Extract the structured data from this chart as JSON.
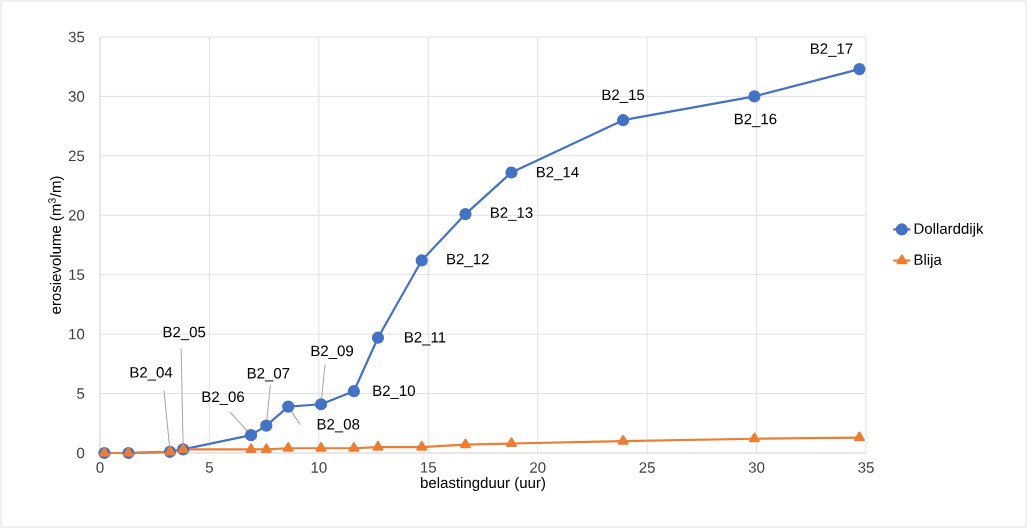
{
  "chart_data": {
    "type": "line",
    "xlabel": "belastingduur (uur)",
    "ylabel": "erosievolume (m$^{3}$/m)",
    "x": [
      0.2,
      1.3,
      3.2,
      3.8,
      6.9,
      7.6,
      8.6,
      10.1,
      11.6,
      12.7,
      14.7,
      16.7,
      18.8,
      23.9,
      29.9,
      34.7
    ],
    "series": [
      {
        "name": "Dollarddijk",
        "color": "#4472c4",
        "marker": "circle",
        "values": [
          0,
          0,
          0.1,
          0.3,
          1.5,
          2.3,
          3.9,
          4.1,
          5.2,
          9.7,
          16.2,
          20.1,
          23.6,
          28,
          30,
          32.3
        ]
      },
      {
        "name": "Blija",
        "color": "#ed7d31",
        "marker": "triangle",
        "values": [
          0,
          0,
          0.1,
          0.3,
          0.3,
          0.3,
          0.4,
          0.4,
          0.4,
          0.5,
          0.5,
          0.7,
          0.8,
          1,
          1.2,
          1.3
        ]
      }
    ],
    "xlim": [
      0,
      35
    ],
    "ylim": [
      0,
      35
    ],
    "xticks": [
      0,
      5,
      10,
      15,
      20,
      25,
      30,
      35
    ],
    "yticks": [
      0,
      5,
      10,
      15,
      20,
      25,
      30,
      35
    ],
    "grid": true,
    "legend": "right",
    "line_style": "solid",
    "annotations": [
      {
        "text": "B2_04",
        "x": 3.2,
        "y": 0.1
      },
      {
        "text": "B2_05",
        "x": 3.8,
        "y": 0.3
      },
      {
        "text": "B2_06",
        "x": 6.9,
        "y": 1.5
      },
      {
        "text": "B2_07",
        "x": 7.6,
        "y": 2.3
      },
      {
        "text": "B2_08",
        "x": 8.6,
        "y": 3.9
      },
      {
        "text": "B2_09",
        "x": 10.1,
        "y": 4.1
      },
      {
        "text": "B2_10",
        "x": 11.6,
        "y": 5.2
      },
      {
        "text": "B2_11",
        "x": 12.7,
        "y": 9.7
      },
      {
        "text": "B2_12",
        "x": 14.7,
        "y": 16.2
      },
      {
        "text": "B2_13",
        "x": 16.7,
        "y": 20.1
      },
      {
        "text": "B2_14",
        "x": 18.8,
        "y": 23.6
      },
      {
        "text": "B2_15",
        "x": 23.9,
        "y": 28
      },
      {
        "text": "B2_16",
        "x": 29.9,
        "y": 30
      },
      {
        "text": "B2_17",
        "x": 34.7,
        "y": 32.3
      }
    ]
  }
}
